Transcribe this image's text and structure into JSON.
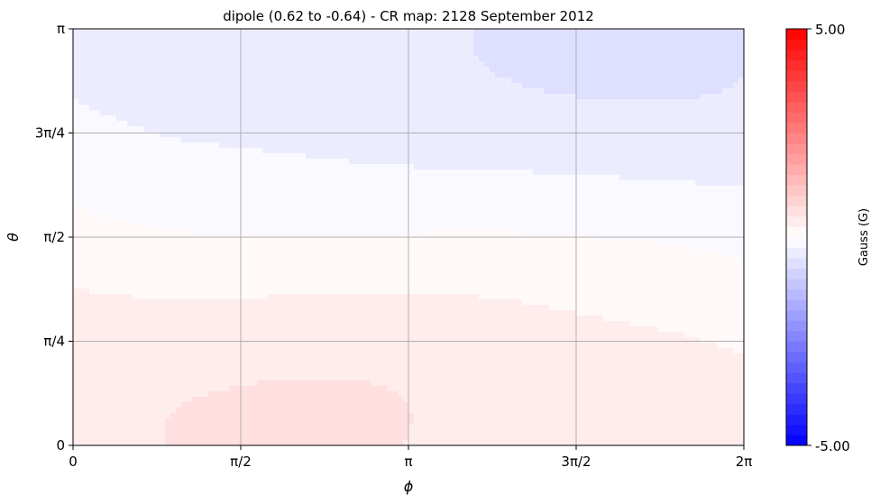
{
  "chart_data": {
    "type": "heatmap",
    "title": "dipole (0.62 to -0.64) - CR map: 2128 September 2012",
    "xlabel": "ϕ",
    "ylabel": "θ",
    "xlim": [
      0,
      6.283185307
    ],
    "ylim": [
      0,
      3.141592654
    ],
    "x_ticks": [
      {
        "value": 0,
        "label": "0"
      },
      {
        "value": 1.570796327,
        "label": "π/2"
      },
      {
        "value": 3.141592654,
        "label": "π"
      },
      {
        "value": 4.71238898,
        "label": "3π/2"
      },
      {
        "value": 6.283185307,
        "label": "2π"
      }
    ],
    "y_ticks": [
      {
        "value": 0,
        "label": "0"
      },
      {
        "value": 0.785398163,
        "label": "π/4"
      },
      {
        "value": 1.570796327,
        "label": "π/2"
      },
      {
        "value": 2.35619449,
        "label": "3π/4"
      },
      {
        "value": 3.141592654,
        "label": "π"
      }
    ],
    "field": {
      "model": "dipole",
      "max": 0.62,
      "min": -0.64,
      "max_location": {
        "phi": 1.92,
        "theta": 0.6
      },
      "min_location": {
        "phi": 5.0,
        "theta": 2.6
      }
    },
    "colorbar": {
      "label": "Gauss (G)",
      "vmin": -5.0,
      "vmax": 5.0,
      "vmin_label": "-5.00",
      "vmax_label": "5.00",
      "cmap": "bwr",
      "levels": 40
    },
    "grid": true,
    "colors": {
      "negative": "#0000ff",
      "zero": "#ffffff",
      "positive": "#ff0000",
      "grid": "#b0b0b0"
    }
  }
}
